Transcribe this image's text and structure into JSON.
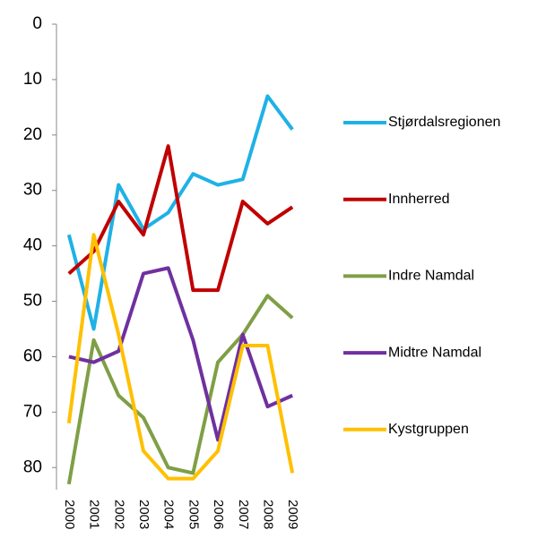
{
  "chart_data": {
    "type": "line",
    "categories": [
      "2000",
      "2001",
      "2002",
      "2003",
      "2004",
      "2005",
      "2006",
      "2007",
      "2008",
      "2009"
    ],
    "series": [
      {
        "name": "Stjørdalsregionen",
        "color": "#1FB1E6",
        "values": [
          38,
          55,
          29,
          37,
          34,
          27,
          29,
          28,
          13,
          19
        ]
      },
      {
        "name": "Innherred",
        "color": "#C00000",
        "values": [
          45,
          41,
          32,
          38,
          22,
          48,
          48,
          32,
          36,
          33
        ]
      },
      {
        "name": "Indre Namdal",
        "color": "#7F9F45",
        "values": [
          83,
          57,
          67,
          71,
          80,
          81,
          61,
          56,
          49,
          53
        ]
      },
      {
        "name": "Midtre Namdal",
        "color": "#7030A0",
        "values": [
          60,
          61,
          59,
          45,
          44,
          57,
          75,
          56,
          69,
          67
        ]
      },
      {
        "name": "Kystgruppen",
        "color": "#FFC000",
        "values": [
          72,
          38,
          56,
          77,
          82,
          82,
          77,
          58,
          58,
          81
        ]
      }
    ],
    "ylim": [
      0,
      84
    ],
    "yticks": [
      0,
      10,
      20,
      30,
      40,
      50,
      60,
      70,
      80
    ],
    "y_inverted": true,
    "grid": false,
    "legend": "right"
  }
}
